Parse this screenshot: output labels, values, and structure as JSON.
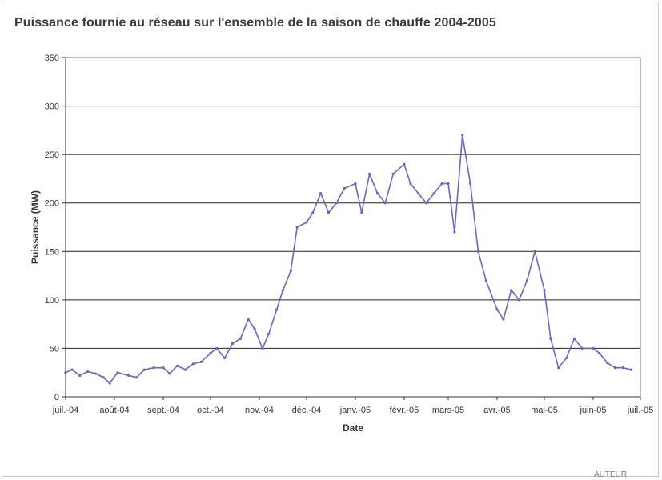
{
  "chart_data": {
    "type": "line",
    "title": "Puissance fournie au réseau sur l'ensemble de la saison de chauffe 2004-2005",
    "xlabel": "Date",
    "ylabel": "Puissance (MW)",
    "ylim": [
      0,
      350
    ],
    "yticks": [
      "0",
      "50",
      "100",
      "150",
      "200",
      "250",
      "300",
      "350"
    ],
    "xlim": [
      "2004-07-01",
      "2005-07-01"
    ],
    "xticks": [
      {
        "label": "juil.-04",
        "date": "2004-07-01"
      },
      {
        "label": "août-04",
        "date": "2004-08-01"
      },
      {
        "label": "sept.-04",
        "date": "2004-09-01"
      },
      {
        "label": "oct.-04",
        "date": "2004-10-01"
      },
      {
        "label": "nov.-04",
        "date": "2004-11-01"
      },
      {
        "label": "déc.-04",
        "date": "2004-12-01"
      },
      {
        "label": "janv.-05",
        "date": "2005-01-01"
      },
      {
        "label": "févr.-05",
        "date": "2005-02-01"
      },
      {
        "label": "mars-05",
        "date": "2005-03-01"
      },
      {
        "label": "avr.-05",
        "date": "2005-04-01"
      },
      {
        "label": "mai-05",
        "date": "2005-05-01"
      },
      {
        "label": "juin-05",
        "date": "2005-06-01"
      },
      {
        "label": "juil.-05",
        "date": "2005-07-01"
      }
    ],
    "grid": "horizontal",
    "color": "#6f63c4",
    "series": [
      {
        "x": [
          "2004-07-01",
          "2004-07-05",
          "2004-07-10",
          "2004-07-15",
          "2004-07-20",
          "2004-07-25",
          "2004-07-29",
          "2004-08-03",
          "2004-08-10",
          "2004-08-15",
          "2004-08-20",
          "2004-08-26",
          "2004-09-01",
          "2004-09-05",
          "2004-09-10",
          "2004-09-15",
          "2004-09-20",
          "2004-09-25",
          "2004-10-01",
          "2004-10-05",
          "2004-10-10",
          "2004-10-15",
          "2004-10-20",
          "2004-10-25",
          "2004-10-29",
          "2004-11-03",
          "2004-11-07",
          "2004-11-12",
          "2004-11-16",
          "2004-11-21",
          "2004-11-25",
          "2004-12-01",
          "2004-12-05",
          "2004-12-10",
          "2004-12-15",
          "2004-12-20",
          "2004-12-25",
          "2005-01-01",
          "2005-01-05",
          "2005-01-10",
          "2005-01-15",
          "2005-01-20",
          "2005-01-25",
          "2005-02-01",
          "2005-02-05",
          "2005-02-10",
          "2005-02-15",
          "2005-02-20",
          "2005-02-25",
          "2005-03-01",
          "2005-03-05",
          "2005-03-10",
          "2005-03-15",
          "2005-03-20",
          "2005-03-25",
          "2005-04-01",
          "2005-04-05",
          "2005-04-10",
          "2005-04-15",
          "2005-04-20",
          "2005-04-25",
          "2005-05-01",
          "2005-05-05",
          "2005-05-10",
          "2005-05-15",
          "2005-05-20",
          "2005-05-25",
          "2005-06-01",
          "2005-06-05",
          "2005-06-10",
          "2005-06-15",
          "2005-06-20",
          "2005-06-25"
        ],
        "y": [
          25,
          28,
          22,
          26,
          24,
          20,
          14,
          25,
          22,
          20,
          28,
          30,
          30,
          24,
          32,
          28,
          34,
          36,
          45,
          50,
          40,
          55,
          60,
          80,
          70,
          50,
          65,
          90,
          110,
          130,
          175,
          180,
          190,
          210,
          190,
          200,
          215,
          220,
          190,
          230,
          210,
          200,
          230,
          240,
          220,
          210,
          200,
          210,
          220,
          220,
          170,
          270,
          220,
          150,
          120,
          90,
          80,
          110,
          100,
          120,
          150,
          110,
          60,
          30,
          40,
          60,
          50,
          50,
          45,
          35,
          30,
          30,
          28
        ]
      }
    ]
  },
  "footer": {
    "corner_text": "AUTEUR"
  }
}
